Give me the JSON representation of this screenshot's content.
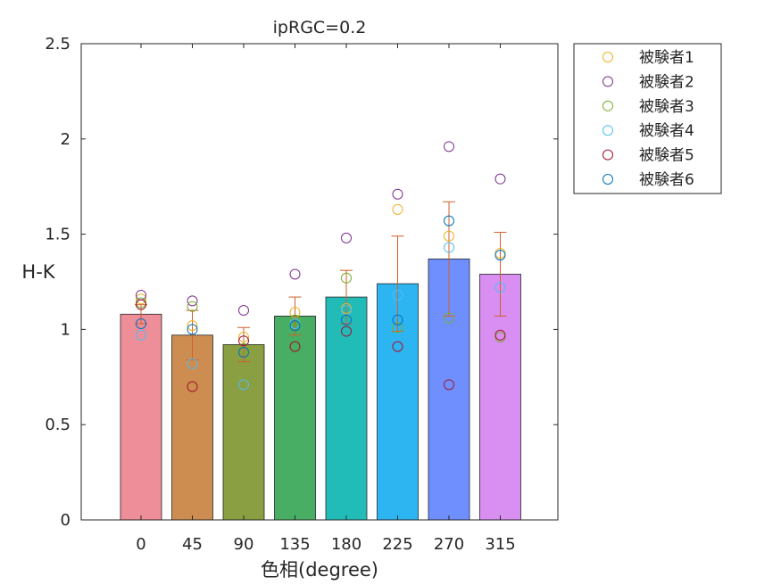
{
  "chart_data": {
    "type": "bar",
    "title": "ipRGC=0.2",
    "xlabel": "色相(degree)",
    "ylabel": "H-K",
    "ylim": [
      0,
      2.5
    ],
    "yticks": [
      "0",
      "0.5",
      "1",
      "1.5",
      "2",
      "2.5"
    ],
    "categories": [
      "0",
      "45",
      "90",
      "135",
      "180",
      "225",
      "270",
      "315"
    ],
    "values": [
      1.08,
      0.97,
      0.92,
      1.07,
      1.17,
      1.24,
      1.37,
      1.29
    ],
    "error": [
      0.05,
      0.13,
      0.09,
      0.1,
      0.14,
      0.25,
      0.3,
      0.22
    ],
    "bar_colors": [
      "#ee8e98",
      "#cd8d51",
      "#8a9f41",
      "#48ae63",
      "#22bcb8",
      "#2db5f2",
      "#6f8fff",
      "#d98ff2"
    ],
    "error_color": "#d35f2b",
    "grid": false,
    "legend_position": "outside-top-right",
    "series": [
      {
        "name": "被験者1",
        "color": "#edb120",
        "values": [
          1.16,
          1.02,
          0.96,
          1.09,
          1.11,
          1.63,
          1.49,
          1.4
        ]
      },
      {
        "name": "被験者2",
        "color": "#7e2f8e",
        "values": [
          1.18,
          1.15,
          1.1,
          1.29,
          1.48,
          1.71,
          1.96,
          1.79
        ]
      },
      {
        "name": "被験者3",
        "color": "#77ac30",
        "values": [
          1.14,
          1.12,
          0.9,
          1.05,
          1.27,
          1.01,
          1.06,
          0.96
        ]
      },
      {
        "name": "被験者4",
        "color": "#4dbeee",
        "values": [
          0.97,
          0.82,
          0.71,
          1.03,
          1.1,
          1.18,
          1.43,
          1.22
        ]
      },
      {
        "name": "被験者5",
        "color": "#a2142f",
        "values": [
          1.13,
          0.7,
          0.94,
          0.91,
          0.99,
          0.91,
          0.71,
          0.97
        ]
      },
      {
        "name": "被験者6",
        "color": "#0072bd",
        "values": [
          1.03,
          1.0,
          0.88,
          1.02,
          1.05,
          1.05,
          1.57,
          1.39
        ]
      }
    ]
  }
}
